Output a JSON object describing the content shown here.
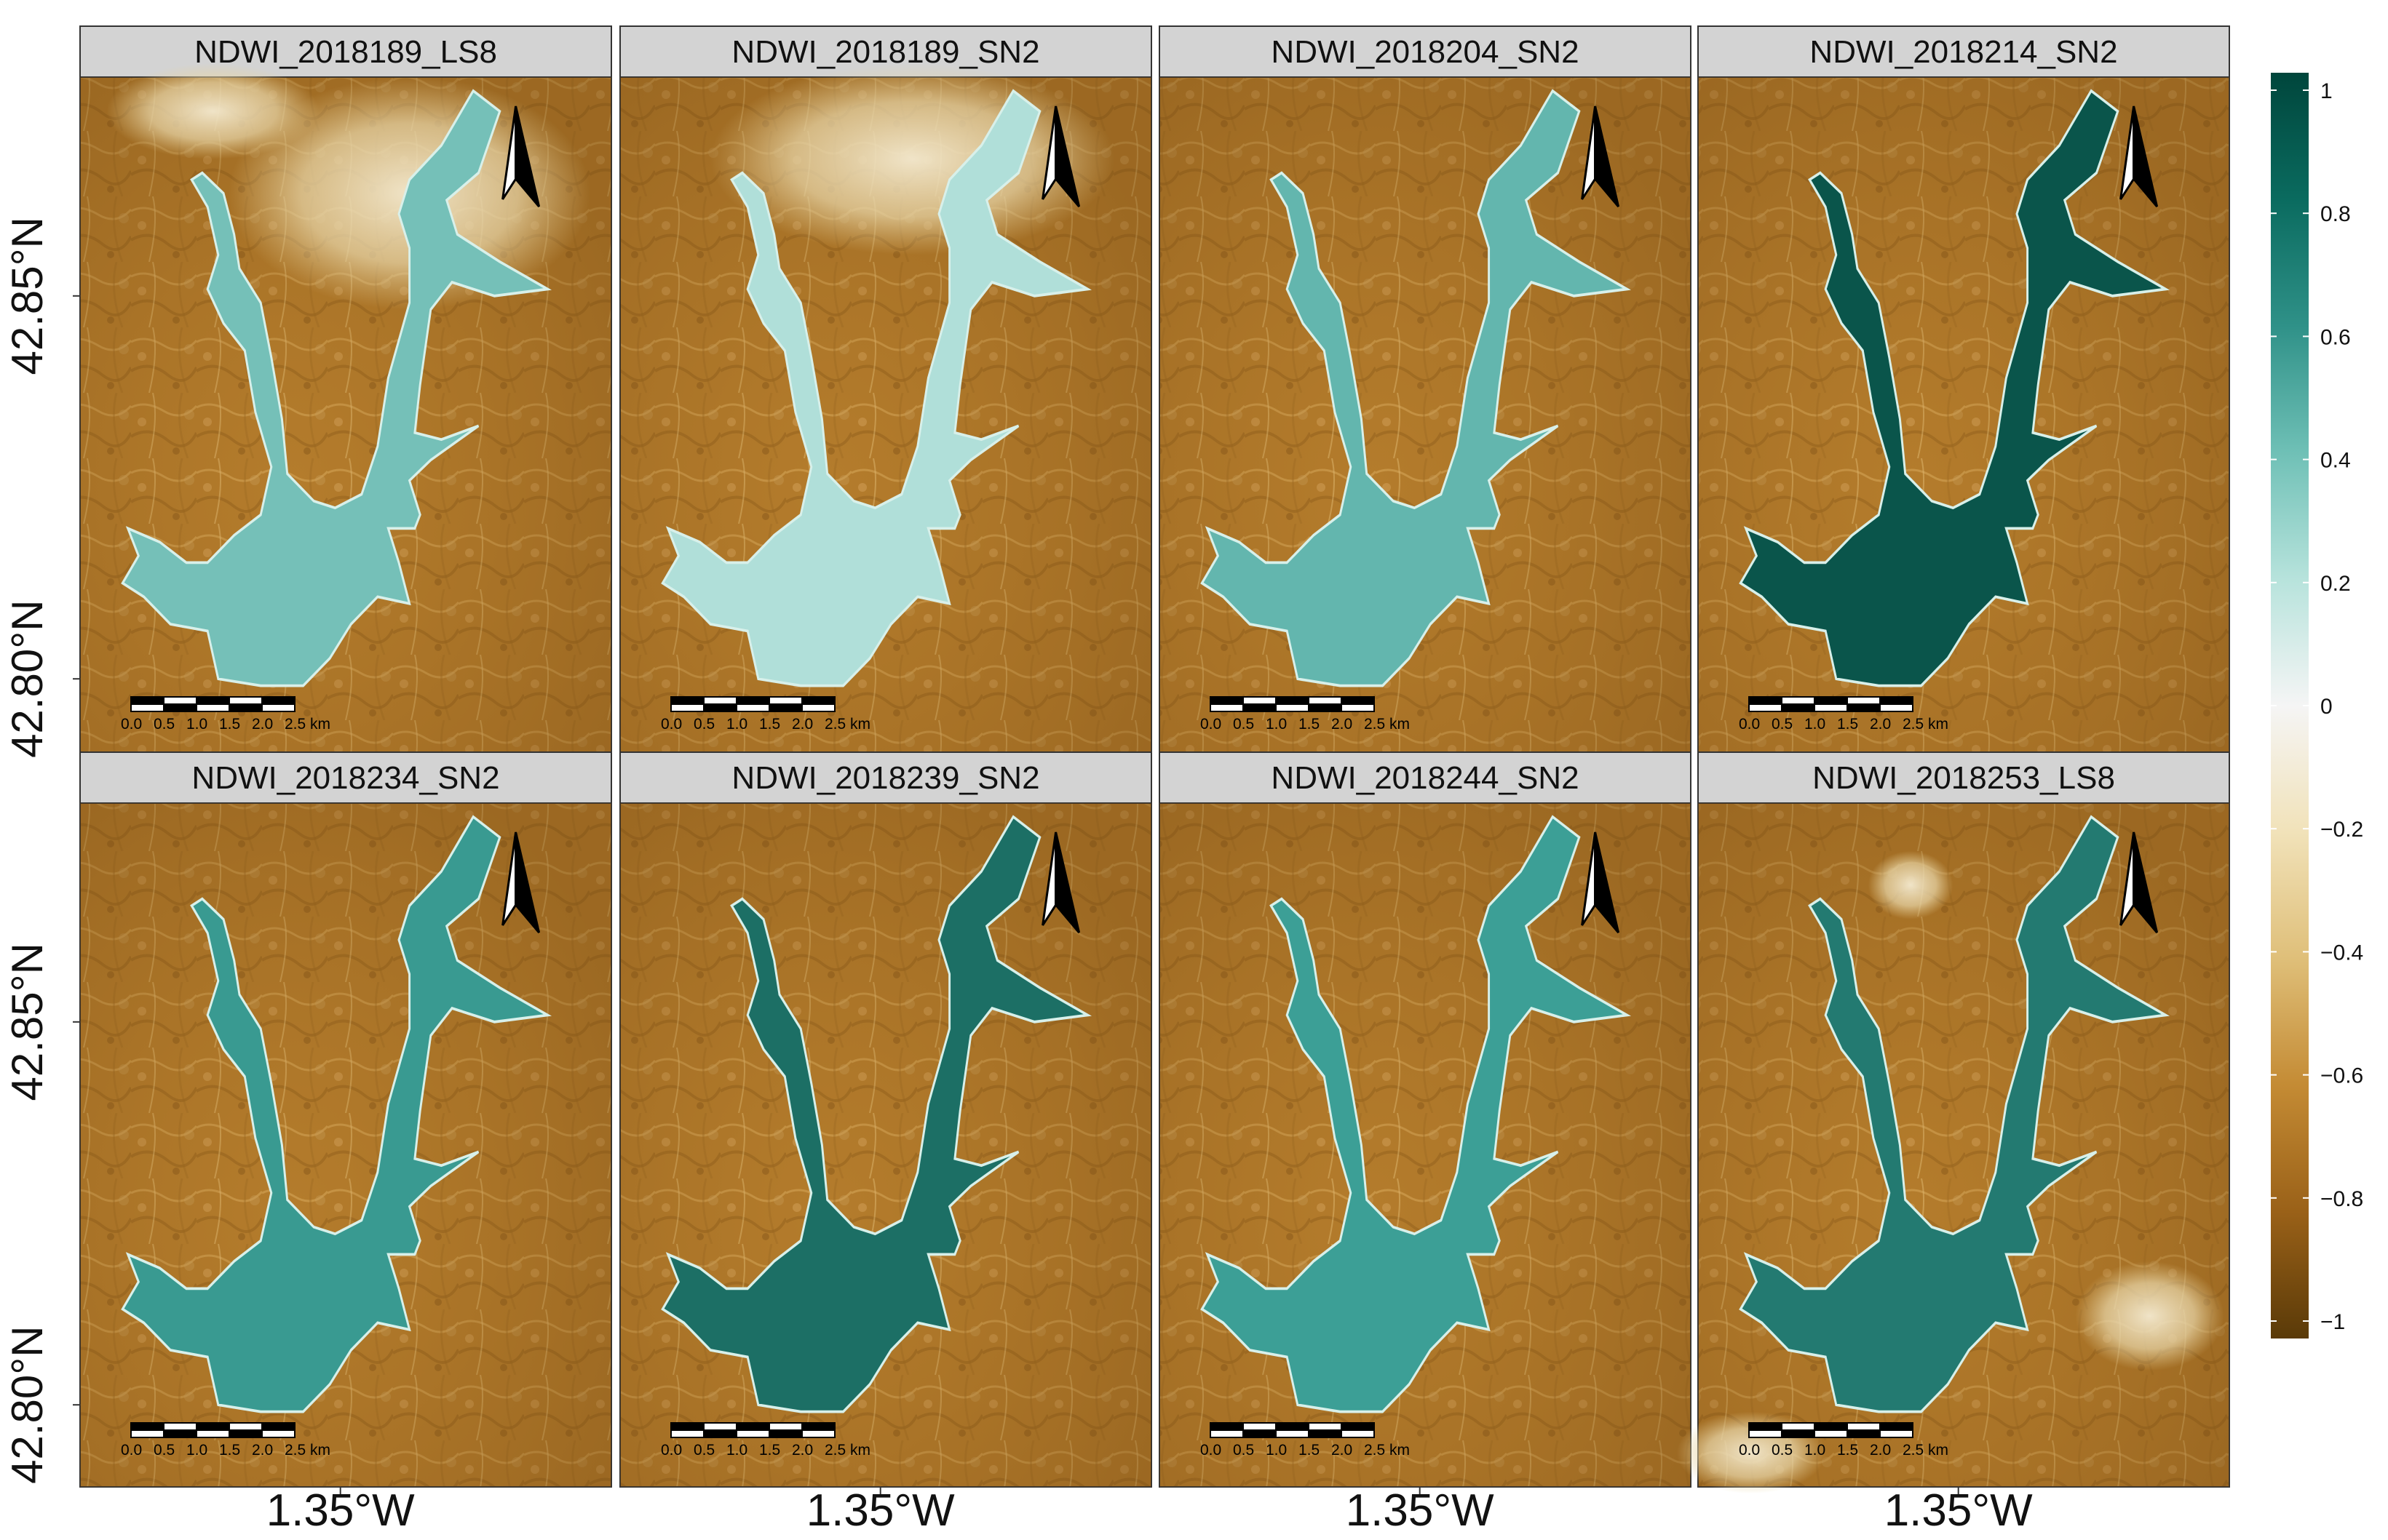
{
  "colorbar": {
    "ticks": [
      "1",
      "0.8",
      "0.6",
      "0.4",
      "0.2",
      "0",
      "−0.2",
      "−0.4",
      "−0.6",
      "−0.8",
      "−1"
    ],
    "min": -1,
    "max": 1,
    "colors": {
      "water_max": "#00463c",
      "water_mid": "#3fa39a",
      "water_low": "#c7ebe5",
      "zero": "#f5f5f5",
      "land_low": "#f1e2b9",
      "land_mid": "#c48b34",
      "land_max": "#5a3a08"
    }
  },
  "axes": {
    "x_label": "1.35°W",
    "y_labels": [
      "42.85°N",
      "42.80°N"
    ]
  },
  "scalebar": {
    "labels": [
      "0.0",
      "0.5",
      "1.0",
      "1.5",
      "2.0",
      "2.5 km"
    ]
  },
  "panels": [
    {
      "title": "NDWI_2018189_LS8",
      "water_ndwi": 0.38,
      "cloud": "top-right"
    },
    {
      "title": "NDWI_2018189_SN2",
      "water_ndwi": 0.25,
      "cloud": "top"
    },
    {
      "title": "NDWI_2018204_SN2",
      "water_ndwi": 0.42,
      "cloud": "none"
    },
    {
      "title": "NDWI_2018214_SN2",
      "water_ndwi": 0.92,
      "cloud": "none"
    },
    {
      "title": "NDWI_2018234_SN2",
      "water_ndwi": 0.55,
      "cloud": "none"
    },
    {
      "title": "NDWI_2018239_SN2",
      "water_ndwi": 0.78,
      "cloud": "none"
    },
    {
      "title": "NDWI_2018244_SN2",
      "water_ndwi": 0.52,
      "cloud": "none"
    },
    {
      "title": "NDWI_2018253_LS8",
      "water_ndwi": 0.72,
      "cloud": "scattered"
    }
  ]
}
